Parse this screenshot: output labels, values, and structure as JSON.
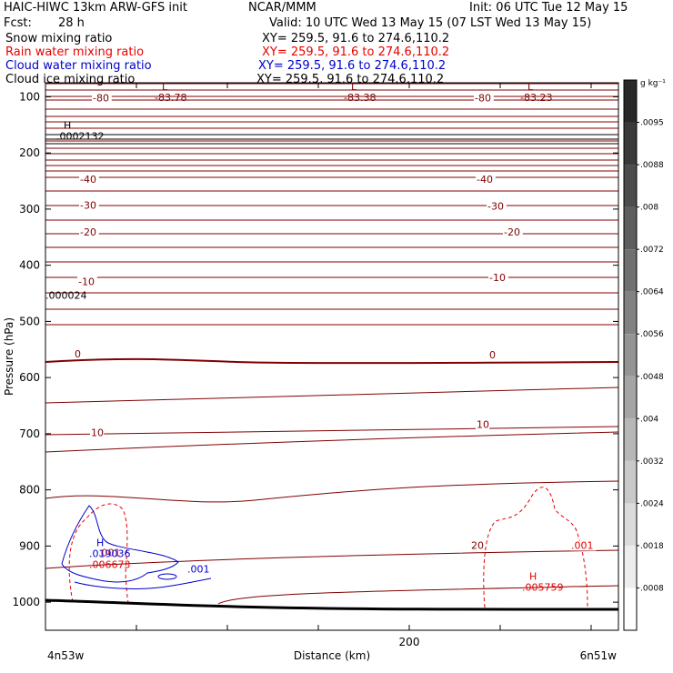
{
  "header": {
    "left_title": "HAIC-HIWC 13km ARW-GFS init",
    "org": "NCAR/MMM",
    "init": "Init: 06 UTC Tue 12 May 15",
    "fcst_label": "Fcst:",
    "fcst_value": "28 h",
    "valid": "Valid: 10 UTC Wed 13 May 15 (07 LST Wed 13 May 15)",
    "fields": [
      {
        "name": "Snow mixing ratio",
        "xy": "XY= 259.5, 91.6 to 274.6,110.2",
        "color": "#000000"
      },
      {
        "name": "Rain water mixing ratio",
        "xy": "XY= 259.5, 91.6 to 274.6,110.2",
        "color": "#e60000"
      },
      {
        "name": "Cloud water mixing ratio",
        "xy": "XY= 259.5, 91.6 to 274.6,110.2",
        "color": "#0000cc"
      },
      {
        "name": "Cloud ice mixing ratio",
        "xy": "XY= 259.5, 91.6 to 274.6,110.2",
        "color": "#000000"
      }
    ]
  },
  "chart_data": {
    "type": "contour cross-section",
    "ylabel": "Pressure (hPa)",
    "xlabel": "Distance (km)",
    "x_ticks": [
      200
    ],
    "y_ticks": [
      100,
      200,
      300,
      400,
      500,
      600,
      700,
      800,
      900,
      1000
    ],
    "ylim": [
      1050,
      75
    ],
    "xlim": [
      0,
      315
    ],
    "x_left_label": "4n53w",
    "x_right_label": "6n51w",
    "temperature_color": "#800000",
    "temperature_contour_labels": [
      {
        "text": "-80",
        "x": 26,
        "p": 108
      },
      {
        "text": "-80",
        "x": 236,
        "p": 108
      },
      {
        "text": "-40",
        "x": 19,
        "p": 253
      },
      {
        "text": "-40",
        "x": 237,
        "p": 253
      },
      {
        "text": "-30",
        "x": 19,
        "p": 299
      },
      {
        "text": "-30",
        "x": 243,
        "p": 301
      },
      {
        "text": "-20",
        "x": 19,
        "p": 347
      },
      {
        "text": "-20",
        "x": 252,
        "p": 347
      },
      {
        "text": "-10",
        "x": 244,
        "p": 428
      },
      {
        "text": "-10",
        "x": 18,
        "p": 435
      },
      {
        "text": "0",
        "x": 16,
        "p": 564
      },
      {
        "text": "0",
        "x": 244,
        "p": 566
      },
      {
        "text": "10",
        "x": 25,
        "p": 704
      },
      {
        "text": "10",
        "x": 237,
        "p": 690
      },
      {
        "text": "20",
        "x": 234,
        "p": 905
      }
    ],
    "extrema_labels": [
      {
        "marker": "L",
        "value": "-83.78",
        "x": 60,
        "p": 88,
        "color": "#800000"
      },
      {
        "marker": "L",
        "value": "-83.38",
        "x": 164,
        "p": 88,
        "color": "#800000"
      },
      {
        "marker": "L",
        "value": "-83.23",
        "x": 261,
        "p": 88,
        "color": "#800000"
      },
      {
        "marker": "H",
        "value": ".0002132",
        "x": 6,
        "p": 157,
        "color": "#000000"
      },
      {
        "marker": "",
        "value": ".000024",
        "x": 0,
        "p": 440,
        "color": "#000000"
      },
      {
        "marker": "H",
        "value": ".019036",
        "x": 24,
        "p": 900,
        "color": "#0000cc"
      },
      {
        "marker": "",
        "value": ".006673",
        "x": 24,
        "p": 920,
        "color": "#e60000"
      },
      {
        "marker": "H",
        "value": ".005759",
        "x": 262,
        "p": 960,
        "color": "#e60000"
      }
    ],
    "rain_labels": [
      {
        "text": ".001",
        "x": 289,
        "p": 905
      },
      {
        "text": ".001",
        "x": 29,
        "p": 918
      }
    ],
    "cloud_labels": [
      {
        "text": ".001",
        "x": 78,
        "p": 947
      }
    ],
    "colorbar": {
      "unit": "g kg⁻¹",
      "labels": [
        ".0095",
        ".0088",
        ".008",
        ".0072",
        ".0064",
        ".0056",
        ".0048",
        ".004",
        ".0032",
        ".0024",
        ".0018",
        ".0008"
      ]
    }
  }
}
